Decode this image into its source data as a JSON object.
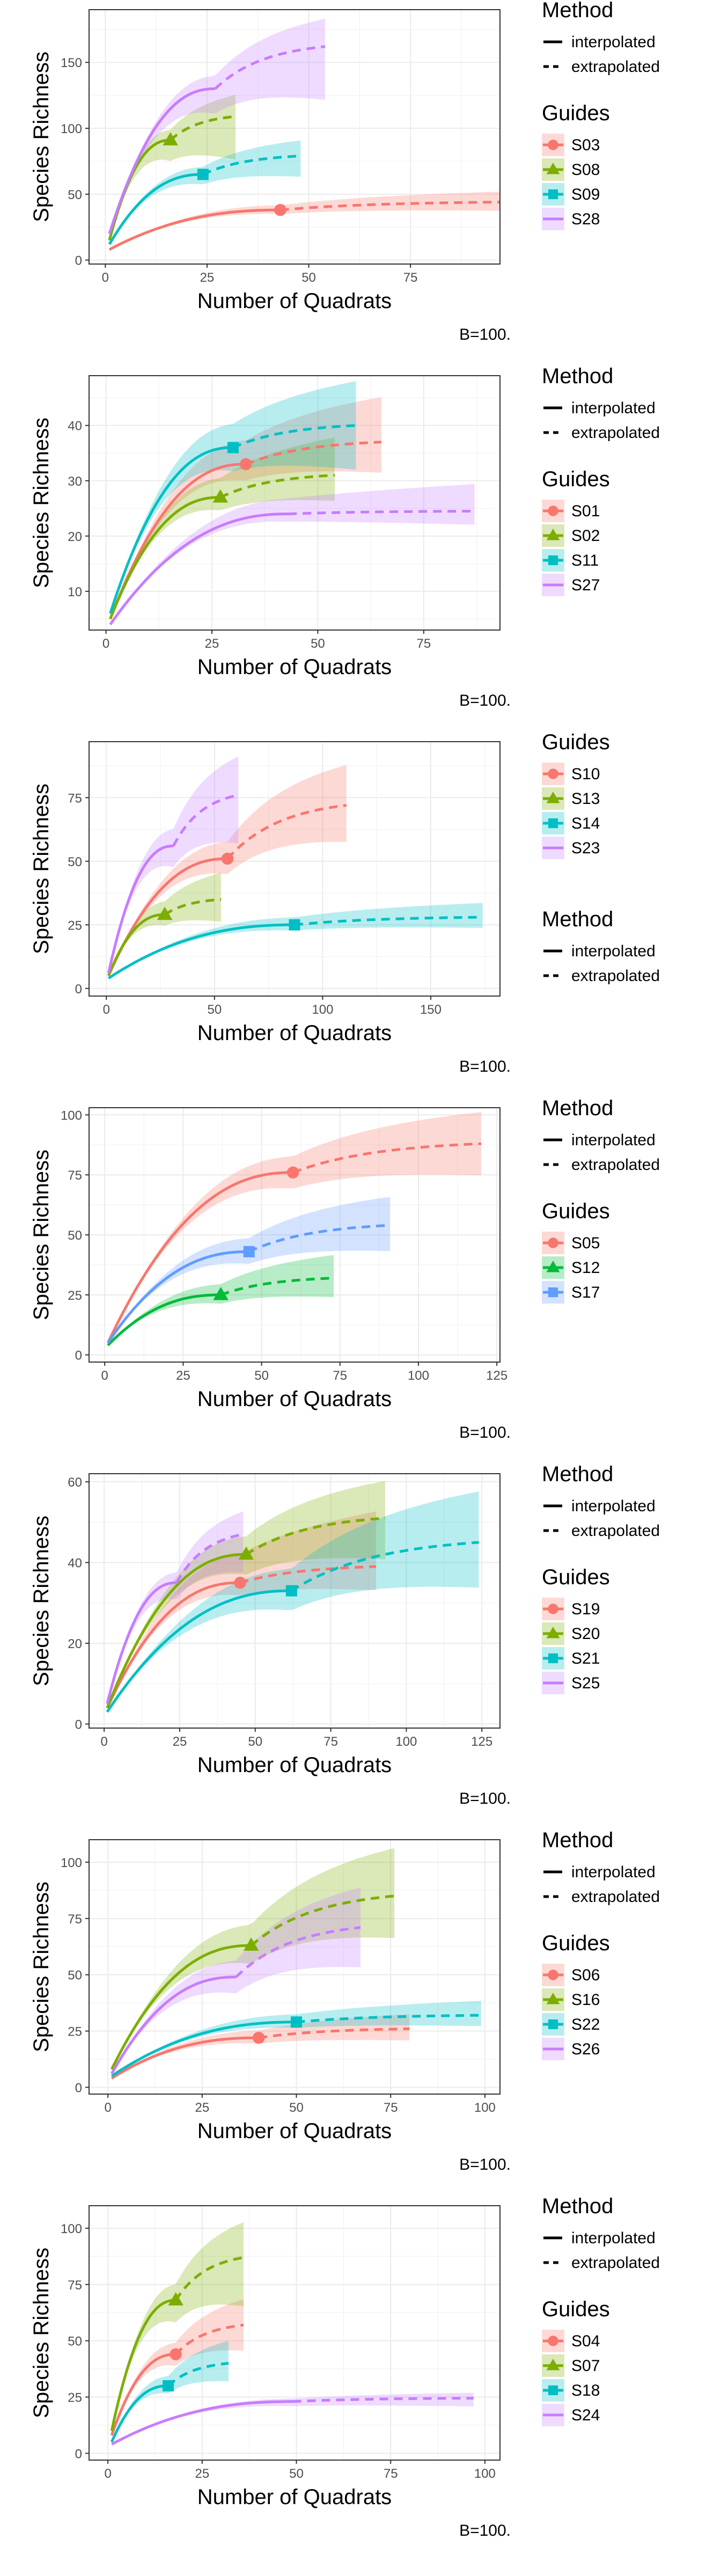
{
  "colors": {
    "red": "#F8766D",
    "olive": "#7CAE00",
    "cyan": "#00BFC4",
    "purple": "#C77CFF",
    "green": "#00BA38",
    "blue": "#619CFF"
  },
  "legend_method_title": "Method",
  "method_labels": [
    "interpolated",
    "extrapolated"
  ],
  "legend_guides_title": "Guides",
  "chart_data": [
    {
      "type": "line",
      "xlabel": "Number of Quadrats",
      "ylabel": "Species Richness",
      "note": "B=100.",
      "xlim": [
        -4,
        97
      ],
      "ylim": [
        -3,
        190
      ],
      "xticks": [
        0,
        25,
        50,
        75
      ],
      "yticks": [
        0,
        50,
        100,
        150
      ],
      "legend_order": [
        "method",
        "guides"
      ],
      "series": [
        {
          "name": "S03",
          "color": "red",
          "marker": "circle",
          "obs": [
            43,
            38
          ],
          "end": [
            97,
            44
          ],
          "start": [
            1,
            8
          ],
          "k": 0.45,
          "bandLo": 0.15,
          "bandHi": 0.18
        },
        {
          "name": "S08",
          "color": "olive",
          "marker": "triangle",
          "obs": [
            16,
            91
          ],
          "end": [
            32,
            109
          ],
          "start": [
            1,
            15
          ],
          "k": 0.2,
          "bandLo": 0.3,
          "bandHi": 0.15
        },
        {
          "name": "S09",
          "color": "cyan",
          "marker": "square",
          "obs": [
            24,
            65
          ],
          "end": [
            48,
            79
          ],
          "start": [
            1,
            12
          ],
          "k": 0.2,
          "bandLo": 0.2,
          "bandHi": 0.15
        },
        {
          "name": "S28",
          "color": "purple",
          "marker": "none",
          "obs": [
            27,
            130
          ],
          "end": [
            54,
            162
          ],
          "start": [
            1,
            20
          ],
          "k": 0.2,
          "bandLo": 0.25,
          "bandHi": 0.13
        }
      ]
    },
    {
      "type": "line",
      "xlabel": "Number of Quadrats",
      "ylabel": "Species Richness",
      "note": "B=100.",
      "xlim": [
        -4,
        93
      ],
      "ylim": [
        3,
        49
      ],
      "xticks": [
        0,
        25,
        50,
        75
      ],
      "yticks": [
        10,
        20,
        30,
        40
      ],
      "legend_order": [
        "method",
        "guides"
      ],
      "series": [
        {
          "name": "S01",
          "color": "red",
          "marker": "circle",
          "obs": [
            33,
            33
          ],
          "end": [
            65,
            37
          ],
          "start": [
            1,
            5
          ],
          "k": 0.3,
          "bandLo": 0.15,
          "bandHi": 0.22
        },
        {
          "name": "S02",
          "color": "olive",
          "marker": "triangle",
          "obs": [
            27,
            27
          ],
          "end": [
            54,
            31
          ],
          "start": [
            1,
            5
          ],
          "k": 0.3,
          "bandLo": 0.15,
          "bandHi": 0.22
        },
        {
          "name": "S11",
          "color": "cyan",
          "marker": "square",
          "obs": [
            30,
            36
          ],
          "end": [
            59,
            40
          ],
          "start": [
            1,
            6
          ],
          "k": 0.3,
          "bandLo": 0.2,
          "bandHi": 0.2
        },
        {
          "name": "S27",
          "color": "purple",
          "marker": "none",
          "obs": [
            43,
            24
          ],
          "end": [
            87,
            24.5
          ],
          "start": [
            1,
            4
          ],
          "k": 0.6,
          "bandLo": 0.1,
          "bandHi": 0.2
        }
      ]
    },
    {
      "type": "line",
      "xlabel": "Number of Quadrats",
      "ylabel": "Species Richness",
      "note": "B=100.",
      "xlim": [
        -8,
        182
      ],
      "ylim": [
        -3,
        97
      ],
      "xticks": [
        0,
        50,
        100,
        150
      ],
      "yticks": [
        0,
        25,
        50,
        75
      ],
      "legend_order": [
        "guides",
        "method"
      ],
      "series": [
        {
          "name": "S10",
          "color": "red",
          "marker": "circle",
          "obs": [
            56,
            51
          ],
          "end": [
            111,
            72
          ],
          "start": [
            1,
            5
          ],
          "k": 0.1,
          "bandLo": 0.2,
          "bandHi": 0.22
        },
        {
          "name": "S13",
          "color": "olive",
          "marker": "triangle",
          "obs": [
            27,
            29
          ],
          "end": [
            53,
            35
          ],
          "start": [
            1,
            5
          ],
          "k": 0.2,
          "bandLo": 0.25,
          "bandHi": 0.3
        },
        {
          "name": "S14",
          "color": "cyan",
          "marker": "square",
          "obs": [
            87,
            25
          ],
          "end": [
            174,
            28
          ],
          "start": [
            1,
            4
          ],
          "k": 0.3,
          "bandLo": 0.15,
          "bandHi": 0.2
        },
        {
          "name": "S23",
          "color": "purple",
          "marker": "none",
          "obs": [
            31,
            56
          ],
          "end": [
            61,
            76
          ],
          "start": [
            1,
            6
          ],
          "k": 0.1,
          "bandLo": 0.25,
          "bandHi": 0.2
        }
      ]
    },
    {
      "type": "line",
      "xlabel": "Number of Quadrats",
      "ylabel": "Species Richness",
      "note": "B=100.",
      "xlim": [
        -5,
        126
      ],
      "ylim": [
        -3,
        103
      ],
      "xticks": [
        0,
        25,
        50,
        75,
        100,
        125
      ],
      "yticks": [
        0,
        25,
        50,
        75,
        100
      ],
      "legend_order": [
        "method",
        "guides"
      ],
      "series": [
        {
          "name": "S05",
          "color": "red",
          "marker": "circle",
          "obs": [
            60,
            76
          ],
          "end": [
            120,
            88
          ],
          "start": [
            1,
            5
          ],
          "k": 0.2,
          "bandLo": 0.15,
          "bandHi": 0.15
        },
        {
          "name": "S12",
          "color": "green",
          "marker": "triangle",
          "obs": [
            37,
            25
          ],
          "end": [
            73,
            32
          ],
          "start": [
            1,
            4
          ],
          "k": 0.2,
          "bandLo": 0.25,
          "bandHi": 0.3
        },
        {
          "name": "S17",
          "color": "blue",
          "marker": "square",
          "obs": [
            46,
            43
          ],
          "end": [
            91,
            54
          ],
          "start": [
            1,
            5
          ],
          "k": 0.2,
          "bandLo": 0.2,
          "bandHi": 0.22
        }
      ]
    },
    {
      "type": "line",
      "xlabel": "Number of Quadrats",
      "ylabel": "Species Richness",
      "note": "B=100.",
      "xlim": [
        -5,
        131
      ],
      "ylim": [
        -1,
        62
      ],
      "xticks": [
        0,
        25,
        50,
        75,
        100,
        125
      ],
      "yticks": [
        0,
        20,
        40,
        60
      ],
      "legend_order": [
        "method",
        "guides"
      ],
      "series": [
        {
          "name": "S19",
          "color": "red",
          "marker": "circle",
          "obs": [
            45,
            35
          ],
          "end": [
            90,
            39
          ],
          "start": [
            1,
            4
          ],
          "k": 0.3,
          "bandLo": 0.15,
          "bandHi": 0.35
        },
        {
          "name": "S20",
          "color": "olive",
          "marker": "triangle",
          "obs": [
            47,
            42
          ],
          "end": [
            93,
            51
          ],
          "start": [
            1,
            4
          ],
          "k": 0.2,
          "bandLo": 0.2,
          "bandHi": 0.18
        },
        {
          "name": "S21",
          "color": "cyan",
          "marker": "square",
          "obs": [
            62,
            33
          ],
          "end": [
            124,
            45
          ],
          "start": [
            1,
            3
          ],
          "k": 0.15,
          "bandLo": 0.25,
          "bandHi": 0.28
        },
        {
          "name": "S25",
          "color": "purple",
          "marker": "none",
          "obs": [
            24,
            35
          ],
          "end": [
            46,
            47
          ],
          "start": [
            1,
            5
          ],
          "k": 0.15,
          "bandLo": 0.2,
          "bandHi": 0.12
        }
      ]
    },
    {
      "type": "line",
      "xlabel": "Number of Quadrats",
      "ylabel": "Species Richness",
      "note": "B=100.",
      "xlim": [
        -5,
        104
      ],
      "ylim": [
        -3,
        110
      ],
      "xticks": [
        0,
        25,
        50,
        75,
        100
      ],
      "yticks": [
        0,
        25,
        50,
        75,
        100
      ],
      "legend_order": [
        "method",
        "guides"
      ],
      "series": [
        {
          "name": "S06",
          "color": "red",
          "marker": "circle",
          "obs": [
            40,
            22
          ],
          "end": [
            80,
            26
          ],
          "start": [
            1,
            4
          ],
          "k": 0.3,
          "bandLo": 0.2,
          "bandHi": 0.25
        },
        {
          "name": "S16",
          "color": "olive",
          "marker": "triangle",
          "obs": [
            38,
            63
          ],
          "end": [
            76,
            85
          ],
          "start": [
            1,
            8
          ],
          "k": 0.15,
          "bandLo": 0.22,
          "bandHi": 0.25
        },
        {
          "name": "S22",
          "color": "cyan",
          "marker": "square",
          "obs": [
            50,
            29
          ],
          "end": [
            99,
            32
          ],
          "start": [
            1,
            5
          ],
          "k": 0.3,
          "bandLo": 0.15,
          "bandHi": 0.2
        },
        {
          "name": "S26",
          "color": "purple",
          "marker": "none",
          "obs": [
            34,
            49
          ],
          "end": [
            67,
            71
          ],
          "start": [
            1,
            6
          ],
          "k": 0.12,
          "bandLo": 0.25,
          "bandHi": 0.25
        }
      ]
    },
    {
      "type": "line",
      "xlabel": "Number of Quadrats",
      "ylabel": "Species Richness",
      "note": "B=100.",
      "xlim": [
        -5,
        104
      ],
      "ylim": [
        -3,
        110
      ],
      "xticks": [
        0,
        25,
        50,
        75,
        100
      ],
      "yticks": [
        0,
        25,
        50,
        75,
        100
      ],
      "legend_order": [
        "method",
        "guides"
      ],
      "series": [
        {
          "name": "S04",
          "color": "red",
          "marker": "circle",
          "obs": [
            18,
            44
          ],
          "end": [
            36,
            57
          ],
          "start": [
            1,
            8
          ],
          "k": 0.15,
          "bandLo": 0.2,
          "bandHi": 0.2
        },
        {
          "name": "S07",
          "color": "olive",
          "marker": "triangle",
          "obs": [
            18,
            68
          ],
          "end": [
            36,
            87
          ],
          "start": [
            1,
            10
          ],
          "k": 0.15,
          "bandLo": 0.25,
          "bandHi": 0.18
        },
        {
          "name": "S18",
          "color": "cyan",
          "marker": "square",
          "obs": [
            16,
            30
          ],
          "end": [
            32,
            40
          ],
          "start": [
            1,
            5
          ],
          "k": 0.2,
          "bandLo": 0.2,
          "bandHi": 0.25
        },
        {
          "name": "S24",
          "color": "purple",
          "marker": "none",
          "obs": [
            49,
            23
          ],
          "end": [
            97,
            24.5
          ],
          "start": [
            1,
            4
          ],
          "k": 0.6,
          "bandLo": 0.15,
          "bandHi": 0.1
        }
      ]
    }
  ]
}
